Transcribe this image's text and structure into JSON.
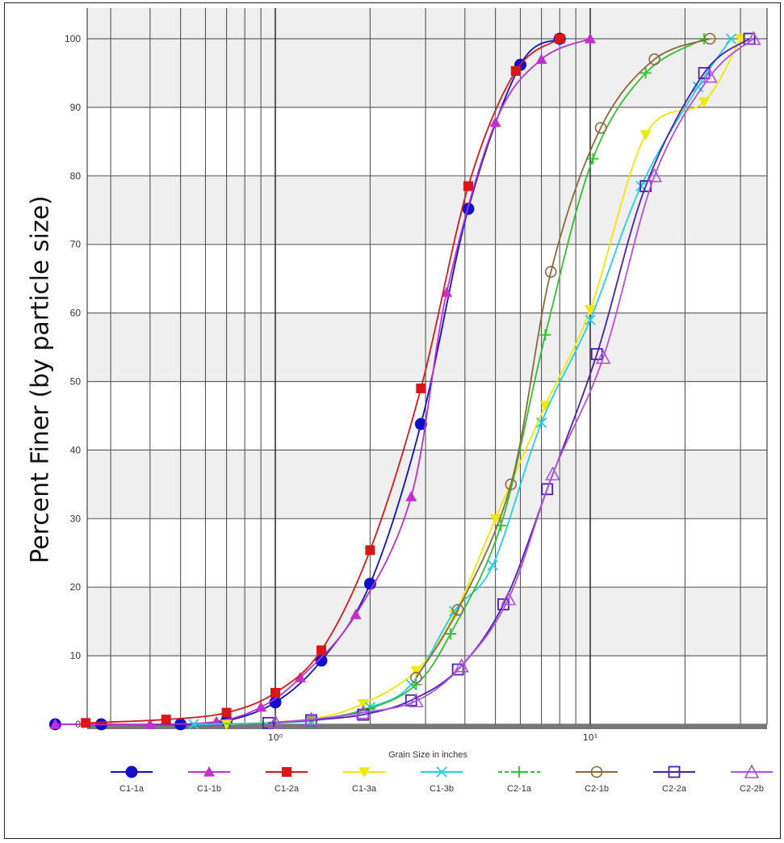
{
  "chart_data": {
    "type": "line",
    "title": "",
    "xlabel": "Grain Size in inches",
    "ylabel": "Percent Finer (by particle size)",
    "x_scale": "log",
    "xlim": [
      0.2,
      45
    ],
    "ylim": [
      0,
      100
    ],
    "x_tick_labels": [
      {
        "value": 1,
        "label": "10⁰"
      },
      {
        "value": 10,
        "label": "10¹"
      }
    ],
    "y_ticks": [
      0,
      10,
      20,
      30,
      40,
      50,
      60,
      70,
      80,
      90,
      100
    ],
    "grid": true,
    "legend_position": "bottom",
    "series": [
      {
        "name": "C1-1a",
        "color": "#1010c8",
        "marker": "circle-filled",
        "x": [
          0.2,
          0.28,
          0.5,
          0.7,
          1.0,
          1.4,
          2.0,
          2.9,
          4.1,
          6.0,
          8.0
        ],
        "y": [
          0,
          0,
          0,
          0.5,
          3.2,
          9.3,
          20.5,
          43.8,
          75.2,
          96.2,
          100
        ]
      },
      {
        "name": "C1-1b",
        "color": "#c030d0",
        "marker": "triangle-filled",
        "x": [
          0.2,
          0.4,
          0.65,
          0.9,
          1.2,
          1.8,
          2.7,
          3.5,
          5.0,
          7.0,
          10.0
        ],
        "y": [
          0,
          0,
          0.4,
          2.5,
          6.8,
          16.0,
          33.2,
          63.0,
          87.8,
          97.0,
          100
        ]
      },
      {
        "name": "C1-2a",
        "color": "#d81818",
        "marker": "square-filled",
        "x": [
          0.25,
          0.45,
          0.7,
          1.0,
          1.4,
          2.0,
          2.9,
          4.1,
          5.8,
          8.0
        ],
        "y": [
          0.2,
          0.7,
          1.7,
          4.6,
          10.8,
          25.4,
          49.0,
          78.5,
          95.3,
          100
        ]
      },
      {
        "name": "C1-3a",
        "color": "#f0e800",
        "marker": "triangle-down-filled",
        "x": [
          0.7,
          1.3,
          1.9,
          2.8,
          3.7,
          5.0,
          7.2,
          10.0,
          15.0,
          23.0,
          30.0
        ],
        "y": [
          0,
          0.8,
          3.0,
          7.8,
          16.0,
          30.0,
          46.5,
          60.5,
          86.0,
          90.8,
          100
        ]
      },
      {
        "name": "C1-3b",
        "color": "#20d0e8",
        "marker": "x-mark",
        "x": [
          0.55,
          1.3,
          2.0,
          2.7,
          3.7,
          4.9,
          7.0,
          10.0,
          14.5,
          22.0,
          28.0
        ],
        "y": [
          0,
          0.5,
          2.5,
          5.8,
          16.5,
          23.2,
          44.0,
          59.0,
          78.5,
          93.0,
          100
        ]
      },
      {
        "name": "C2-1a",
        "color": "#30c030",
        "marker": "plus",
        "x": [
          1.3,
          2.0,
          2.8,
          3.6,
          5.2,
          7.2,
          10.2,
          15.0,
          23.0
        ],
        "y": [
          0.5,
          2.3,
          5.8,
          13.2,
          29.0,
          56.8,
          82.5,
          95.0,
          100
        ]
      },
      {
        "name": "C2-1b",
        "color": "#8a6a3a",
        "marker": "circle-open",
        "x": [
          2.8,
          3.8,
          5.6,
          7.5,
          10.8,
          16.0,
          24.0
        ],
        "y": [
          6.8,
          16.7,
          35.0,
          66.0,
          87.0,
          97.0,
          100
        ]
      },
      {
        "name": "C2-2a",
        "color": "#4a20b0",
        "marker": "square-open",
        "x": [
          0.95,
          1.3,
          1.9,
          2.7,
          3.8,
          5.3,
          7.3,
          10.5,
          15.0,
          23.0,
          32.0
        ],
        "y": [
          0.2,
          0.6,
          1.4,
          3.5,
          8.0,
          17.5,
          34.3,
          54.0,
          78.5,
          95.0,
          100
        ]
      },
      {
        "name": "C2-2b",
        "color": "#b050e0",
        "marker": "triangle-open",
        "x": [
          1.0,
          1.3,
          1.9,
          2.8,
          3.9,
          5.5,
          7.6,
          11.0,
          16.0,
          24.0,
          33.0
        ],
        "y": [
          0.3,
          0.7,
          1.7,
          3.4,
          8.5,
          18.3,
          36.5,
          53.5,
          80.0,
          94.5,
          100
        ]
      }
    ]
  }
}
